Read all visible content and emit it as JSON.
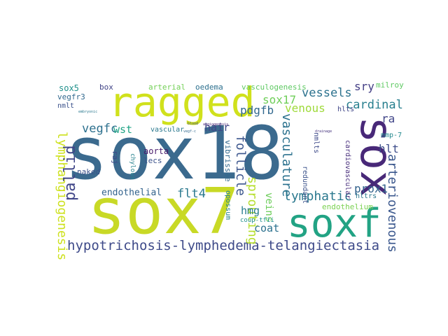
{
  "words": [
    {
      "text": "sox18",
      "color": "#3b6a8e",
      "v": false
    },
    {
      "text": "sox7",
      "color": "#c8d926",
      "v": false
    },
    {
      "text": "ragged",
      "color": "#d0e11c",
      "v": false
    },
    {
      "text": "soxf",
      "color": "#22a384",
      "v": false
    },
    {
      "text": "sox",
      "color": "#482878",
      "v": true
    },
    {
      "text": "hypotrichosis-lymphedema-telangiectasia",
      "color": "#3e4a89",
      "v": false
    },
    {
      "text": "lymphangiogenesis",
      "color": "#cde11d",
      "v": true
    },
    {
      "text": "pallid",
      "color": "#404688",
      "v": false
    },
    {
      "text": "vasculature",
      "color": "#2c728e",
      "v": true
    },
    {
      "text": "sprouting",
      "color": "#b5de2b",
      "v": true
    },
    {
      "text": "follicle",
      "color": "#3a548c",
      "v": true
    },
    {
      "text": "lymphatic",
      "color": "#2a788e",
      "v": false
    },
    {
      "text": "arteriovenous",
      "color": "#39568c",
      "v": true
    },
    {
      "text": "vegfc",
      "color": "#2d708e",
      "v": false
    },
    {
      "text": "vessels",
      "color": "#2c728e",
      "v": false
    },
    {
      "text": "cardinal",
      "color": "#277f8e",
      "v": false
    },
    {
      "text": "pdgfb",
      "color": "#30688e",
      "v": false
    },
    {
      "text": "sox17",
      "color": "#6ece58",
      "v": false
    },
    {
      "text": "venous",
      "color": "#9fda3a",
      "v": false
    },
    {
      "text": "flt4",
      "color": "#2a788e",
      "v": false
    },
    {
      "text": "prox1",
      "color": "#33638d",
      "v": false
    },
    {
      "text": "hmg",
      "color": "#287c8e",
      "v": false
    },
    {
      "text": "coat",
      "color": "#2c718e",
      "v": false
    },
    {
      "text": "hlt",
      "color": "#3d4d8a",
      "v": false
    },
    {
      "text": "ra",
      "color": "#404588",
      "v": false
    },
    {
      "text": "sry",
      "color": "#433e85",
      "v": false
    },
    {
      "text": "wst",
      "color": "#20a486",
      "v": false
    },
    {
      "text": "hair",
      "color": "#3f4788",
      "v": false
    },
    {
      "text": "endothelial",
      "color": "#33638d",
      "v": false
    },
    {
      "text": "veins",
      "color": "#6ccd5a",
      "v": true
    },
    {
      "text": "sox5",
      "color": "#21918c",
      "v": false
    },
    {
      "text": "vegfr3",
      "color": "#31688e",
      "v": false
    },
    {
      "text": "nmlt",
      "color": "#3b528b",
      "v": false
    },
    {
      "text": "box",
      "color": "#414487",
      "v": false
    },
    {
      "text": "arterial",
      "color": "#73d056",
      "v": false
    },
    {
      "text": "oedema",
      "color": "#2d708e",
      "v": false
    },
    {
      "text": "vasculogenesis",
      "color": "#5ec962",
      "v": false
    },
    {
      "text": "milroy",
      "color": "#5ec962",
      "v": false
    },
    {
      "text": "naked",
      "color": "#3b528b",
      "v": false
    },
    {
      "text": "aorta",
      "color": "#481a6c",
      "v": false
    },
    {
      "text": "lecs",
      "color": "#3b528b",
      "v": false
    },
    {
      "text": "raj",
      "color": "#3e4a89",
      "v": true
    },
    {
      "text": "vascular",
      "color": "#2a788e",
      "v": false
    },
    {
      "text": "vibrissae",
      "color": "#31688e",
      "v": true
    },
    {
      "text": "chylous",
      "color": "#26828e",
      "v": true
    },
    {
      "text": "opossum",
      "color": "#26828e",
      "v": true
    },
    {
      "text": "endothelium",
      "color": "#7ad151",
      "v": false
    },
    {
      "text": "hltrs",
      "color": "#2a788e",
      "v": false
    },
    {
      "text": "coup-tfii",
      "color": "#21918c",
      "v": false
    },
    {
      "text": "cardiovascular",
      "color": "#472d7b",
      "v": true
    },
    {
      "text": "redundant",
      "color": "#3b528b",
      "v": true
    },
    {
      "text": "nmlts",
      "color": "#3e4a89",
      "v": true
    },
    {
      "text": "hlts",
      "color": "#404688",
      "v": false
    },
    {
      "text": "mmp-7",
      "color": "#23898e",
      "v": false
    },
    {
      "text": "drainage",
      "color": "#46337e",
      "v": false
    },
    {
      "text": "embryonic",
      "color": "#2a788e",
      "v": false
    },
    {
      "text": "blood",
      "color": "#3e4a89",
      "v": false
    },
    {
      "text": "vegf-c",
      "color": "#31688e",
      "v": false
    },
    {
      "text": "angiogenesis",
      "color": "#482475",
      "v": false
    }
  ]
}
